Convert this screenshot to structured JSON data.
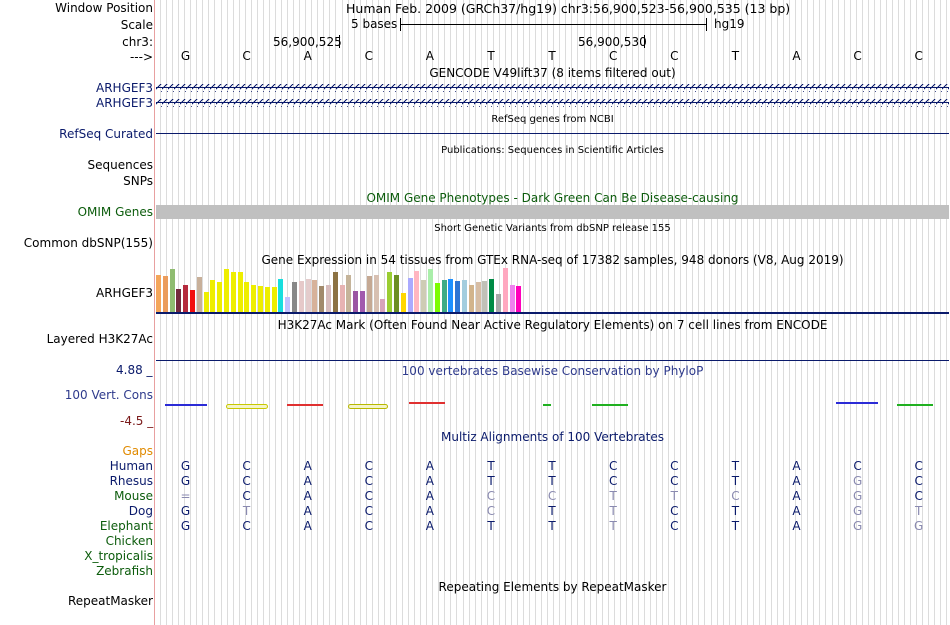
{
  "header": {
    "window_position_label": "Window Position",
    "scale_label": "Scale",
    "chrom_label": "chr3:",
    "arrow_label": "--->",
    "window_text": "Human Feb. 2009 (GRCh37/hg19)   chr3:56,900,523-56,900,535 (13 bp)",
    "scale_text": "5 bases",
    "assembly": "hg19",
    "pos1": "56,900,525",
    "pos2": "56,900,530"
  },
  "bases": [
    "G",
    "C",
    "A",
    "C",
    "A",
    "T",
    "T",
    "C",
    "C",
    "T",
    "A",
    "C",
    "C"
  ],
  "gencode": {
    "title": "GENCODE V49lift37 (8 items filtered out)",
    "items": [
      "ARHGEF3",
      "ARHGEF3"
    ]
  },
  "refseq": {
    "label": "RefSeq Curated",
    "title": "RefSeq genes from NCBI"
  },
  "publications": {
    "title": "Publications: Sequences in Scientific Articles"
  },
  "labels": {
    "sequences": "Sequences",
    "snps": "SNPs"
  },
  "omim": {
    "label": "OMIM Genes",
    "title": "OMIM Gene Phenotypes - Dark Green Can Be Disease-causing"
  },
  "dbsnp": {
    "label": "Common dbSNP(155)",
    "title": "Short Genetic Variants from dbSNP release 155"
  },
  "gtex": {
    "title": "Gene Expression in 54 tissues from GTEx RNA-seq of 17382 samples, 948 donors (V8, Aug 2019)",
    "label": "ARHGEF3",
    "bars": [
      {
        "c": "#f4a55a",
        "v": 0.84
      },
      {
        "c": "#eb9c5c",
        "v": 0.82
      },
      {
        "c": "#8fbc70",
        "v": 0.97
      },
      {
        "c": "#742a3c",
        "v": 0.53
      },
      {
        "c": "#b52b3d",
        "v": 0.62
      },
      {
        "c": "#f20f0f",
        "v": 0.5
      },
      {
        "c": "#c8b09a",
        "v": 0.79
      },
      {
        "c": "#eeee00",
        "v": 0.46
      },
      {
        "c": "#eeee00",
        "v": 0.72
      },
      {
        "c": "#eeee00",
        "v": 0.69
      },
      {
        "c": "#eeee00",
        "v": 0.97
      },
      {
        "c": "#eeee00",
        "v": 0.91
      },
      {
        "c": "#eeee00",
        "v": 0.9
      },
      {
        "c": "#eeee00",
        "v": 0.69
      },
      {
        "c": "#eeee00",
        "v": 0.62
      },
      {
        "c": "#eeee00",
        "v": 0.6
      },
      {
        "c": "#eeee00",
        "v": 0.56
      },
      {
        "c": "#eeee00",
        "v": 0.57
      },
      {
        "c": "#18dede",
        "v": 0.75
      },
      {
        "c": "#c2c2ff",
        "v": 0.33
      },
      {
        "c": "#888888",
        "v": 0.68
      },
      {
        "c": "#e6c9c9",
        "v": 0.7
      },
      {
        "c": "#e4cccc",
        "v": 0.75
      },
      {
        "c": "#d7b29a",
        "v": 0.72
      },
      {
        "c": "#a18a6b",
        "v": 0.6
      },
      {
        "c": "#d7bcbc",
        "v": 0.62
      },
      {
        "c": "#8c7243",
        "v": 0.9
      },
      {
        "c": "#e7b3b3",
        "v": 0.62
      },
      {
        "c": "#c5b49a",
        "v": 0.85
      },
      {
        "c": "#9b56a3",
        "v": 0.47
      },
      {
        "c": "#a15aae",
        "v": 0.47
      },
      {
        "c": "#c5a994",
        "v": 0.82
      },
      {
        "c": "#d7c0b2",
        "v": 0.83
      },
      {
        "c": "#d7a4ba",
        "v": 0.3
      },
      {
        "c": "#9acd32",
        "v": 0.91
      },
      {
        "c": "#6b8e23",
        "v": 0.84
      },
      {
        "c": "#ffd700",
        "v": 0.44
      },
      {
        "c": "#aaaaff",
        "v": 0.78
      },
      {
        "c": "#ffb6c1",
        "v": 0.94
      },
      {
        "c": "#ceccb4",
        "v": 0.72
      },
      {
        "c": "#aaeeaa",
        "v": 0.97
      },
      {
        "c": "#7cfc00",
        "v": 0.66
      },
      {
        "c": "#3dac87",
        "v": 0.73
      },
      {
        "c": "#1e90ff",
        "v": 0.75
      },
      {
        "c": "#2e74d3",
        "v": 0.7
      },
      {
        "c": "#a3cdde",
        "v": 0.72
      },
      {
        "c": "#d2b48c",
        "v": 0.62
      },
      {
        "c": "#d7bda4",
        "v": 0.69
      },
      {
        "c": "#c1c1b7",
        "v": 0.71
      },
      {
        "c": "#008b45",
        "v": 0.74
      },
      {
        "c": "#a8a8a8",
        "v": 0.4
      },
      {
        "c": "#ffa8c0",
        "v": 0.99
      },
      {
        "c": "#ee82ee",
        "v": 0.62
      },
      {
        "c": "#ff00bb",
        "v": 0.58
      }
    ]
  },
  "h3k27ac": {
    "label": "Layered H3K27Ac",
    "title": "H3K27Ac Mark (Often Found Near Active Regulatory Elements) on 7 cell lines from ENCODE"
  },
  "conservation": {
    "label": "100 Vert. Cons",
    "max": "4.88 _",
    "min": "-4.5 _",
    "title": "100 vertebrates Basewise Conservation by PhyloP"
  },
  "multiz": {
    "title": "Multiz Alignments of 100 Vertebrates",
    "gaps_label": "Gaps",
    "species": [
      {
        "name": "Human",
        "color": "#0a1a6b",
        "seq": [
          "G",
          "C",
          "A",
          "C",
          "A",
          "T",
          "T",
          "C",
          "C",
          "T",
          "A",
          "C",
          "C"
        ],
        "match": [
          1,
          1,
          1,
          1,
          1,
          1,
          1,
          1,
          1,
          1,
          1,
          1,
          1
        ]
      },
      {
        "name": "Rhesus",
        "color": "#0a1a6b",
        "seq": [
          "G",
          "C",
          "A",
          "C",
          "A",
          "T",
          "T",
          "C",
          "C",
          "T",
          "A",
          "G",
          "C"
        ],
        "match": [
          1,
          1,
          1,
          1,
          1,
          1,
          1,
          1,
          1,
          1,
          1,
          0,
          1
        ]
      },
      {
        "name": "Mouse",
        "color": "#0c5c0c",
        "seq": [
          "=",
          "C",
          "A",
          "C",
          "A",
          "C",
          "C",
          "T",
          "T",
          "C",
          "A",
          "G",
          "C"
        ],
        "match": [
          0,
          1,
          1,
          1,
          1,
          0,
          0,
          0,
          0,
          0,
          1,
          0,
          1
        ]
      },
      {
        "name": "Dog",
        "color": "#0a1a6b",
        "seq": [
          "G",
          "T",
          "A",
          "C",
          "A",
          "C",
          "T",
          "T",
          "C",
          "T",
          "A",
          "G",
          "T"
        ],
        "match": [
          1,
          0,
          1,
          1,
          1,
          0,
          1,
          0,
          1,
          1,
          1,
          0,
          0
        ]
      },
      {
        "name": "Elephant",
        "color": "#0c5c0c",
        "seq": [
          "G",
          "C",
          "A",
          "C",
          "A",
          "T",
          "T",
          "T",
          "C",
          "T",
          "A",
          "G",
          "G"
        ],
        "match": [
          1,
          1,
          1,
          1,
          1,
          1,
          1,
          0,
          1,
          1,
          1,
          0,
          0
        ]
      },
      {
        "name": "Chicken",
        "color": "#0c5c0c",
        "seq": [],
        "match": []
      },
      {
        "name": "X_tropicalis",
        "color": "#0c5c0c",
        "seq": [],
        "match": []
      },
      {
        "name": "Zebrafish",
        "color": "#0c5c0c",
        "seq": [],
        "match": []
      }
    ]
  },
  "repeatmasker": {
    "label": "RepeatMasker",
    "title": "Repeating Elements by RepeatMasker"
  }
}
